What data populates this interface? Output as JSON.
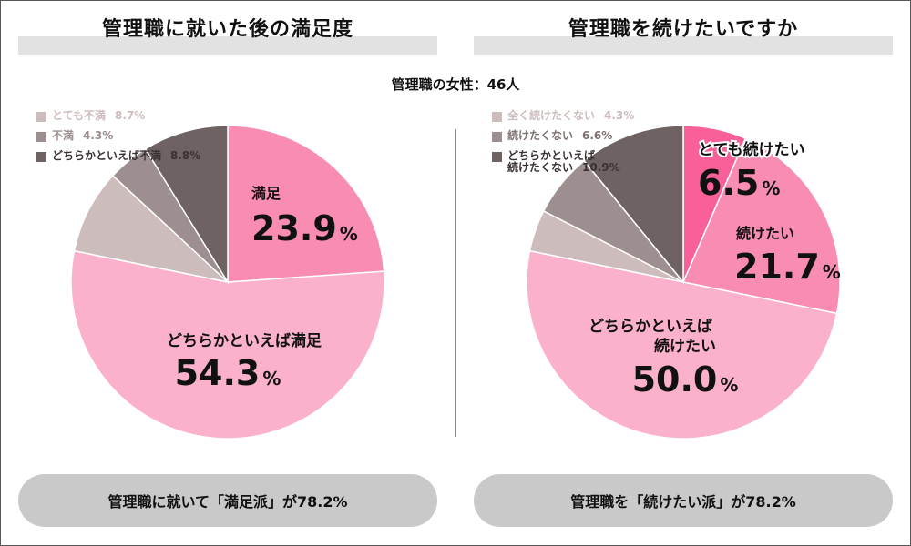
{
  "header": {
    "respondents": "管理職の女性：46人"
  },
  "left": {
    "title": "管理職に就いた後の満足度",
    "legend": [
      {
        "label": "とても不満",
        "pct": "8.7%",
        "color": "#cdbcbc"
      },
      {
        "label": "不満",
        "pct": "4.3%",
        "color": "#9d8f8f"
      },
      {
        "label": "どちらかといえば不満",
        "pct": "8.8%",
        "color": "#6e6262"
      }
    ],
    "slice_labels": {
      "manzoku": "満足",
      "manzoku_value": "23.9",
      "manzoku_unit": "%",
      "dochira": "どちらかといえば満足",
      "dochira_value": "54.3",
      "dochira_unit": "%"
    },
    "summary": "管理職に就いて「満足派」が78.2%"
  },
  "right": {
    "title": "管理職を続けたいですか",
    "legend": [
      {
        "label": "全く続けたくない",
        "pct": "4.3%",
        "color": "#cdbcbc"
      },
      {
        "label": "続けたくない",
        "pct": "6.6%",
        "color": "#9d8f8f"
      },
      {
        "label_line1": "どちらかといえば",
        "label_line2": "続けたくない",
        "pct": "10.9%",
        "color": "#6e6262"
      }
    ],
    "slice_labels": {
      "totemo": "とても続けたい",
      "totemo_value": "6.5",
      "totemo_unit": "%",
      "tsuzuke": "続けたい",
      "tsuzuke_value": "21.7",
      "tsuzuke_unit": "%",
      "dochira_line1": "どちらかといえば",
      "dochira_line2": "続けたい",
      "dochira_value": "50.0",
      "dochira_unit": "%"
    },
    "summary": "管理職を「続けたい派」が78.2%"
  },
  "chart_data": [
    {
      "type": "pie",
      "title": "管理職に就いた後の満足度",
      "categories": [
        "満足",
        "どちらかといえば満足",
        "とても不満",
        "不満",
        "どちらかといえば不満"
      ],
      "values": [
        23.9,
        54.3,
        8.7,
        4.3,
        8.8
      ],
      "colors": [
        "#f98cb3",
        "#fbb1cb",
        "#cdbcbc",
        "#9d8f8f",
        "#6e6262"
      ],
      "start": "12 o'clock, clockwise"
    },
    {
      "type": "pie",
      "title": "管理職を続けたいですか",
      "categories": [
        "とても続けたい",
        "続けたい",
        "どちらかといえば続けたい",
        "全く続けたくない",
        "続けたくない",
        "どちらかといえば続けたくない"
      ],
      "values": [
        6.5,
        21.7,
        50.0,
        4.3,
        6.6,
        10.9
      ],
      "colors": [
        "#f9609a",
        "#f98cb3",
        "#fbb1cb",
        "#cdbcbc",
        "#9d8f8f",
        "#6e6262"
      ],
      "start": "12 o'clock, clockwise"
    }
  ]
}
